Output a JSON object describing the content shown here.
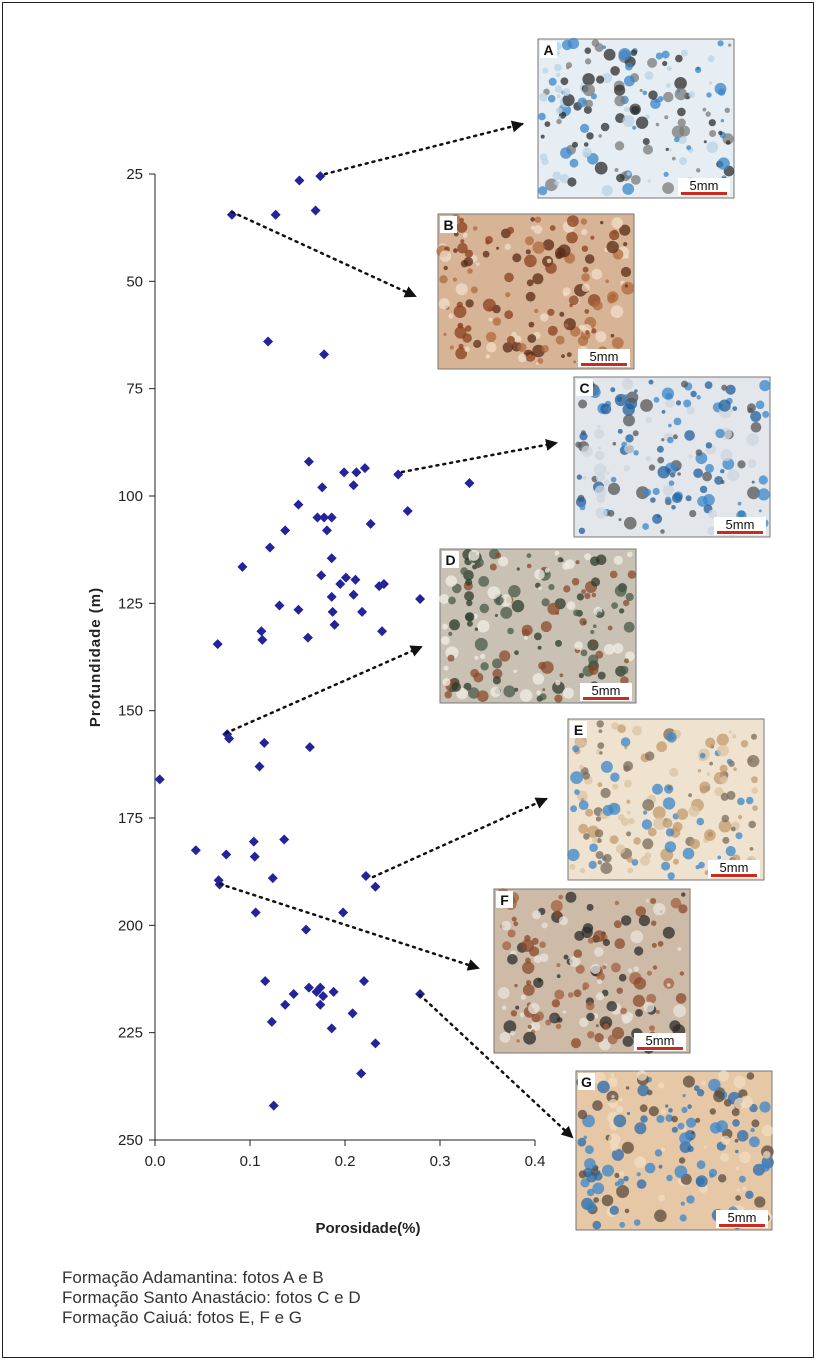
{
  "chart_data": {
    "type": "scatter",
    "xlabel": "Porosidade(%)",
    "ylabel": "Profundidade (m)",
    "xlim": [
      0.0,
      0.4
    ],
    "ylim": [
      25,
      250
    ],
    "y_inverted": true,
    "x_ticks": [
      "0.0",
      "0.1",
      "0.2",
      "0.3",
      "0.4"
    ],
    "y_ticks": [
      "25",
      "50",
      "75",
      "100",
      "125",
      "150",
      "175",
      "200",
      "225",
      "250"
    ],
    "grid": false,
    "marker": "diamond",
    "marker_color": "#24249a",
    "points": [
      [
        0.174,
        25.5
      ],
      [
        0.152,
        26.5
      ],
      [
        0.169,
        33.5
      ],
      [
        0.081,
        34.5
      ],
      [
        0.127,
        34.5
      ],
      [
        0.119,
        64.0
      ],
      [
        0.178,
        67.0
      ],
      [
        0.162,
        92.0
      ],
      [
        0.199,
        94.5
      ],
      [
        0.221,
        93.5
      ],
      [
        0.212,
        94.5
      ],
      [
        0.256,
        95.0
      ],
      [
        0.176,
        98.0
      ],
      [
        0.209,
        97.5
      ],
      [
        0.331,
        97.0
      ],
      [
        0.151,
        102.0
      ],
      [
        0.171,
        105.0
      ],
      [
        0.178,
        105.0
      ],
      [
        0.186,
        105.0
      ],
      [
        0.181,
        108.0
      ],
      [
        0.266,
        103.5
      ],
      [
        0.227,
        106.5
      ],
      [
        0.137,
        108.0
      ],
      [
        0.121,
        112.0
      ],
      [
        0.186,
        114.5
      ],
      [
        0.092,
        116.5
      ],
      [
        0.175,
        118.5
      ],
      [
        0.201,
        119.0
      ],
      [
        0.195,
        120.5
      ],
      [
        0.211,
        119.5
      ],
      [
        0.209,
        123.0
      ],
      [
        0.186,
        123.5
      ],
      [
        0.236,
        121.0
      ],
      [
        0.241,
        120.5
      ],
      [
        0.218,
        127.0
      ],
      [
        0.279,
        124.0
      ],
      [
        0.131,
        125.5
      ],
      [
        0.151,
        126.5
      ],
      [
        0.187,
        127.0
      ],
      [
        0.189,
        130.0
      ],
      [
        0.112,
        131.5
      ],
      [
        0.113,
        133.5
      ],
      [
        0.161,
        133.0
      ],
      [
        0.239,
        131.5
      ],
      [
        0.066,
        134.5
      ],
      [
        0.076,
        155.5
      ],
      [
        0.078,
        156.5
      ],
      [
        0.115,
        157.5
      ],
      [
        0.163,
        158.5
      ],
      [
        0.11,
        163.0
      ],
      [
        0.005,
        166.0
      ],
      [
        0.043,
        182.5
      ],
      [
        0.075,
        183.5
      ],
      [
        0.104,
        180.5
      ],
      [
        0.105,
        184.0
      ],
      [
        0.136,
        180.0
      ],
      [
        0.124,
        189.0
      ],
      [
        0.067,
        189.5
      ],
      [
        0.068,
        190.5
      ],
      [
        0.222,
        188.5
      ],
      [
        0.232,
        191.0
      ],
      [
        0.106,
        197.0
      ],
      [
        0.198,
        197.0
      ],
      [
        0.159,
        201.0
      ],
      [
        0.116,
        213.0
      ],
      [
        0.146,
        216.0
      ],
      [
        0.162,
        214.5
      ],
      [
        0.174,
        214.5
      ],
      [
        0.17,
        215.5
      ],
      [
        0.177,
        216.5
      ],
      [
        0.174,
        218.5
      ],
      [
        0.188,
        215.5
      ],
      [
        0.22,
        213.0
      ],
      [
        0.279,
        216.0
      ],
      [
        0.137,
        218.5
      ],
      [
        0.123,
        222.5
      ],
      [
        0.186,
        224.0
      ],
      [
        0.208,
        220.5
      ],
      [
        0.232,
        227.5
      ],
      [
        0.217,
        234.5
      ],
      [
        0.125,
        242.0
      ]
    ]
  },
  "photos": [
    {
      "letter": "A",
      "scale": "5mm"
    },
    {
      "letter": "B",
      "scale": "5mm"
    },
    {
      "letter": "C",
      "scale": "5mm"
    },
    {
      "letter": "D",
      "scale": "5mm"
    },
    {
      "letter": "E",
      "scale": "5mm"
    },
    {
      "letter": "F",
      "scale": "5mm"
    },
    {
      "letter": "G",
      "scale": "5mm"
    }
  ],
  "caption": [
    "Formação Adamantina: fotos A e B",
    "Formação Santo Anastácio: fotos  C e D",
    "Formação Caiuá: fotos E, F e G"
  ],
  "colors": {
    "marker": "#24249a",
    "scale_bar": "#cc2a1e",
    "blue_stain": "#3a86c9",
    "reddish": "#8a4a2a"
  }
}
